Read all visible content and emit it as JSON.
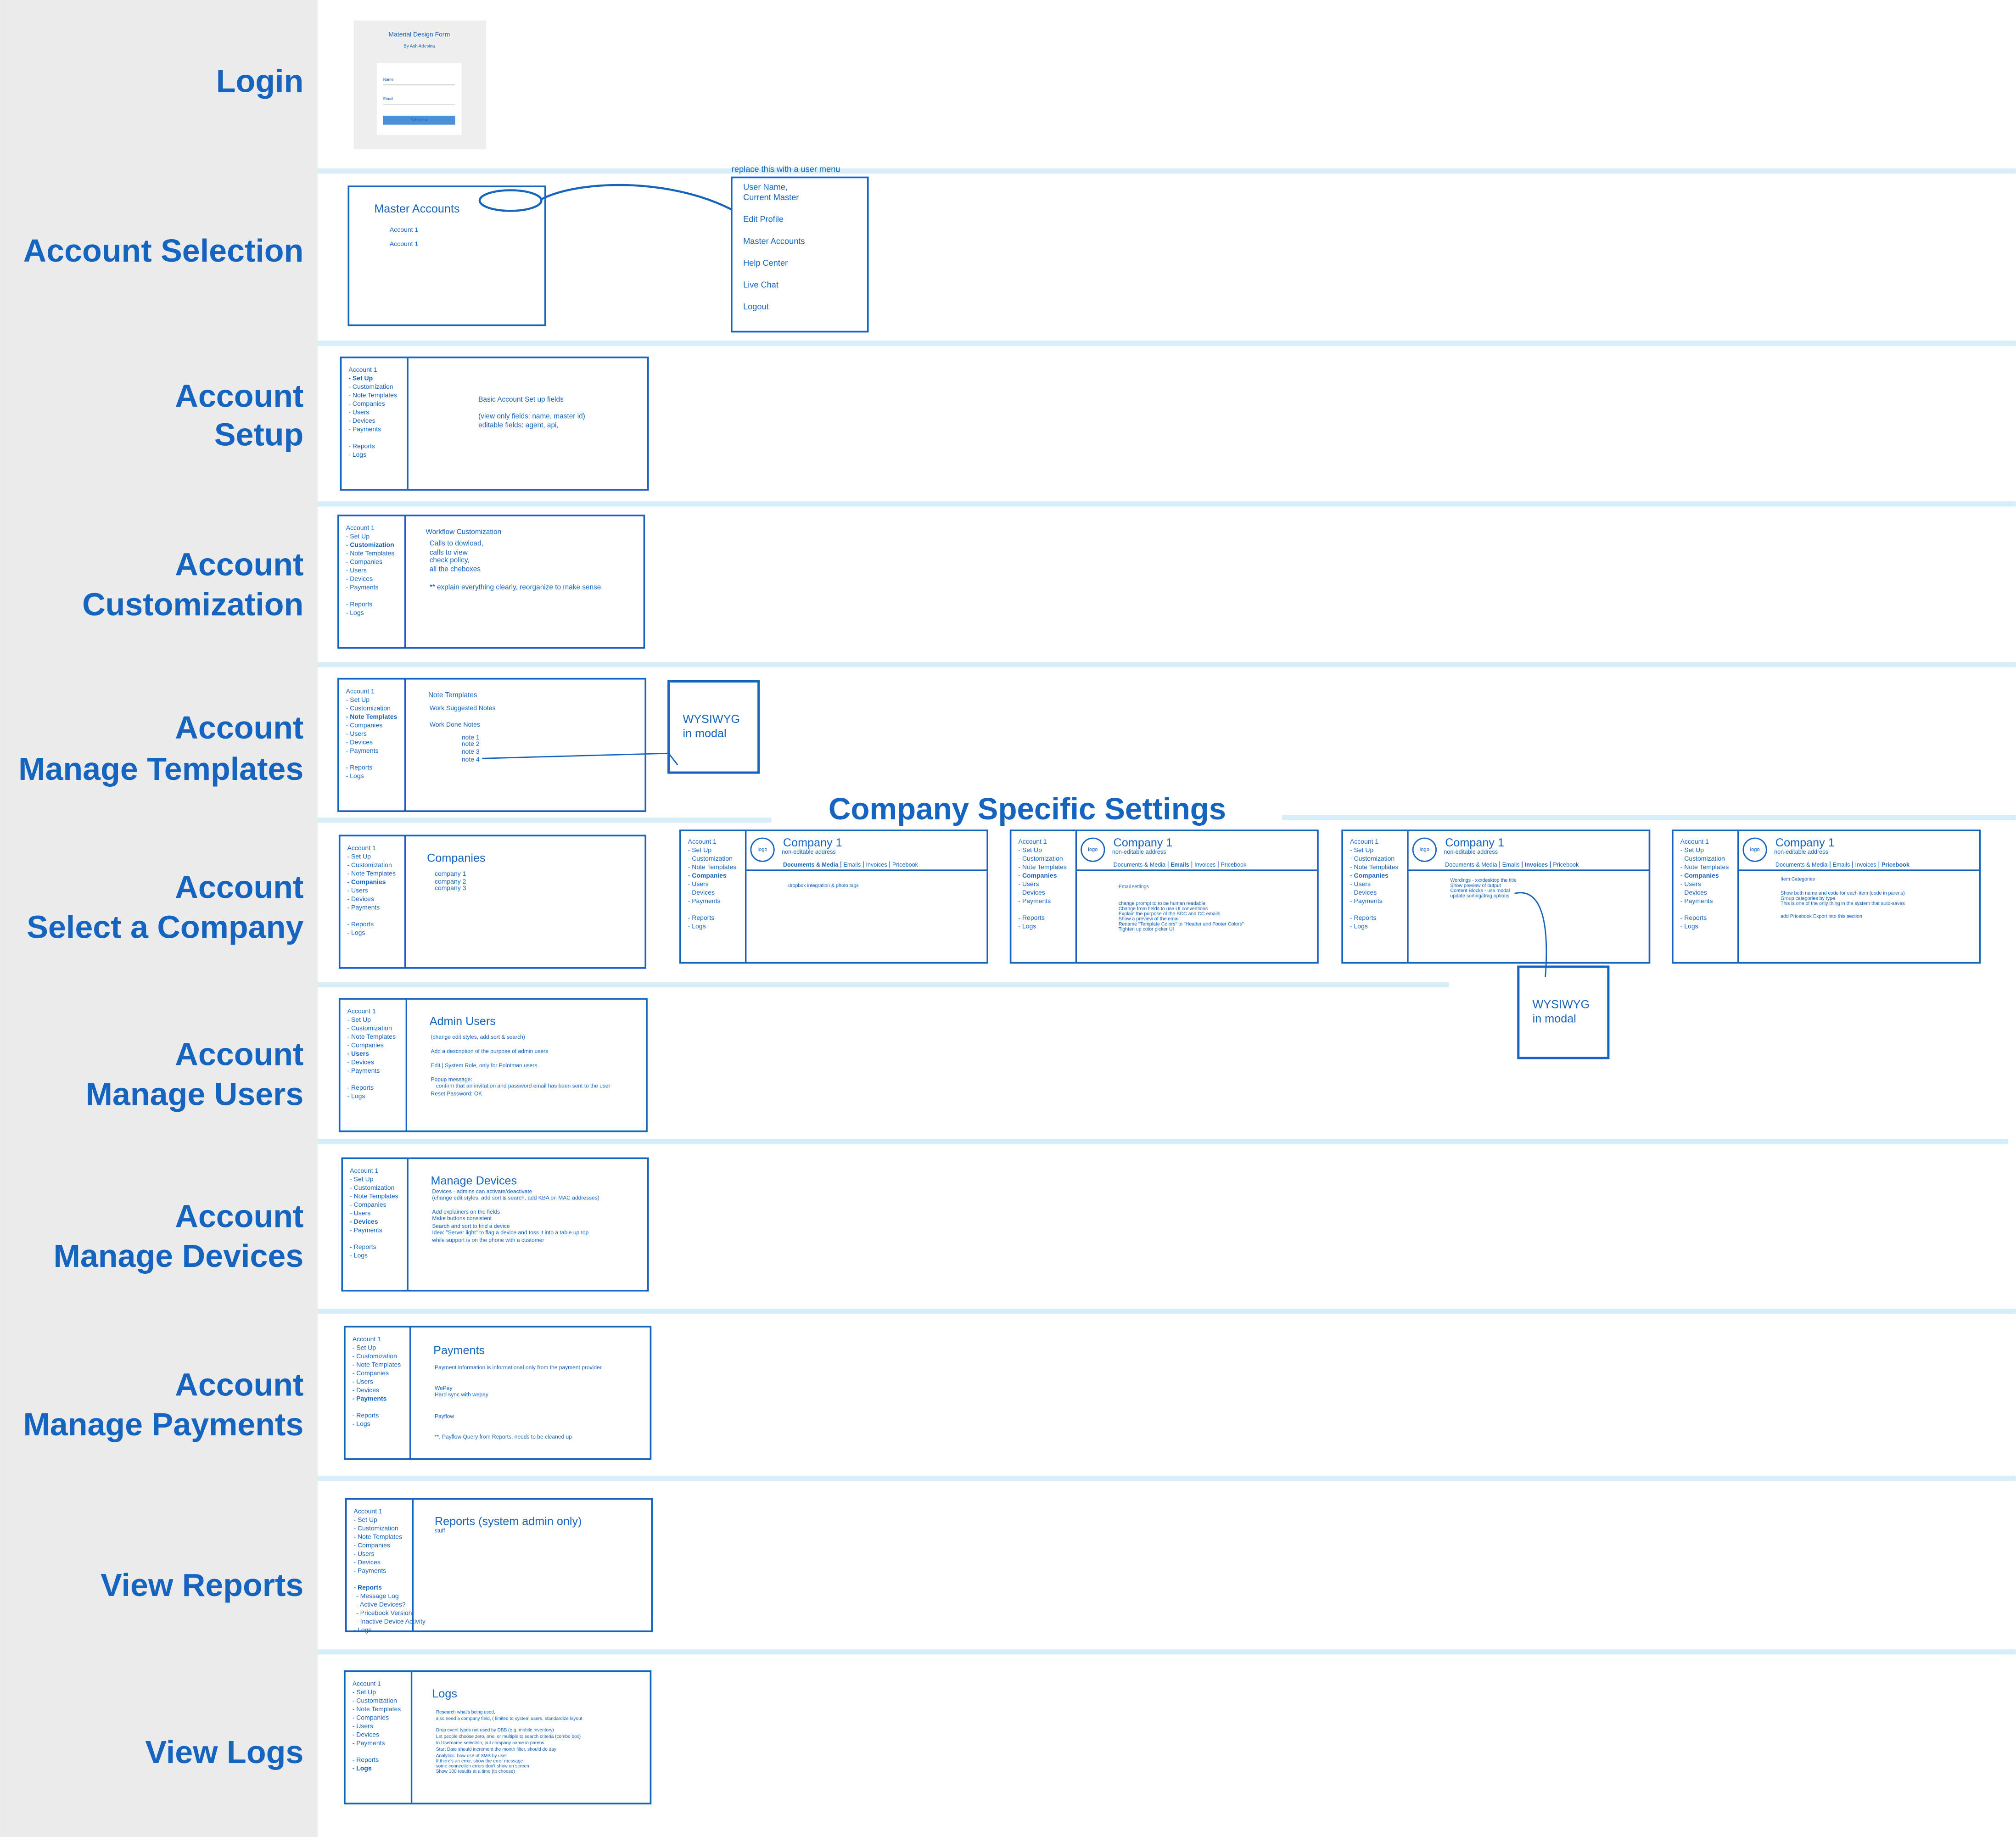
{
  "login": {
    "title": "Material Design Form",
    "subtitle": "By Ash Adesina",
    "fields": [
      "Name",
      "Email"
    ],
    "button": "Subscribe"
  },
  "sections": [
    {
      "label": [
        "Login"
      ]
    },
    {
      "label": [
        "Account Selection"
      ]
    },
    {
      "label": [
        "Account",
        "Setup"
      ]
    },
    {
      "label": [
        "Account",
        "Customization"
      ]
    },
    {
      "label": [
        "Account",
        "Manage Templates"
      ]
    },
    {
      "label": [
        "Account",
        "Select a Company"
      ]
    },
    {
      "label": [
        "Account",
        "Manage Users"
      ]
    },
    {
      "label": [
        "Account",
        "Manage Devices"
      ]
    },
    {
      "label": [
        "Account",
        "Manage Payments"
      ]
    },
    {
      "label": [
        "View Reports"
      ]
    },
    {
      "label": [
        "View Logs"
      ]
    }
  ],
  "account_selection": {
    "title": "Master Accounts",
    "accounts": [
      "Account 1",
      "Account 1"
    ],
    "menu_note": "replace this with a user menu",
    "menu": [
      "User Name,",
      "Current Master",
      "Edit Profile",
      "Master Accounts",
      "Help Center",
      "Live Chat",
      "Logout"
    ]
  },
  "nav": [
    "Account 1",
    "- Set Up",
    "- Customization",
    "- Note Templates",
    "- Companies",
    "- Users",
    "- Devices",
    "- Payments",
    "- Reports",
    "- Logs"
  ],
  "report_links": [
    "- Message Log",
    "- Active Devices?",
    "- Pricebook Version",
    "- Inactive Device Activity"
  ],
  "panels": [
    {
      "active": 1,
      "content": [
        "Basic Account Set up fields",
        "(view only fields: name, master id)",
        "editable fields: agent, api,"
      ]
    },
    {
      "active": 2,
      "heading": "Workflow Customization",
      "content": [
        "Calls to dowload,",
        "calls to view",
        "check policy,",
        "all the cheboxes",
        "** explain everything clearly, reorganize to make sense."
      ]
    },
    {
      "active": 3,
      "heading": "Note Templates",
      "content": [
        "Work Suggested Notes",
        "Work Done Notes",
        "note 1",
        "note 2",
        "note 3",
        "note 4"
      ]
    },
    {
      "active": 4,
      "heading": "Companies",
      "content": [
        "company 1",
        "company 2",
        "company 3"
      ]
    },
    {
      "active": 5,
      "heading": "Admin Users",
      "content": [
        "(change edit styles, add sort & search)",
        "Add a description of the purpose of admin users",
        "Edit | System Role, only for Pointman users",
        "Popup message:",
        "confirm that an invitation and password email has been sent to the user",
        "Reset Password: OK"
      ]
    },
    {
      "active": 6,
      "heading": "Manage Devices",
      "content": [
        "Devices - admins can activate/deactivate",
        "(change edit styles, add sort & search, add KBA on MAC addresses)",
        "Add explainers on the fields",
        "Make buttons consistent",
        "Search and sort to find a device",
        "Idea: \"Server light\" to flag a device and toss it into a table up top",
        "while support is on the phone with a customer"
      ]
    },
    {
      "active": 7,
      "heading": "Payments",
      "content": [
        "Payment information is informational only from the payment provider",
        "WePay",
        "Hard sync with wepay",
        "Payflow",
        "**, Payflow Query from Reports, needs to be cleaned up"
      ]
    },
    {
      "active": 8,
      "heading": "Reports (system admin only)",
      "content": [
        "stuff"
      ]
    },
    {
      "active": 9,
      "heading": "Logs",
      "content": [
        "Research what's being used,",
        "also need a company field, ( limited to system users, standardize layout",
        "Drop event types not used by DBB (e.g. mobile inventory)",
        "Let people choose zero, one, or multiple to search criteria (combo box)",
        "In Username selection, put company name in parens",
        "Start Date should increment the month filter, should do day",
        "Analytics: how use of SMS by user",
        "If there's an error, show the error message",
        "some connection errors don't show on screen",
        "Show 100 results at a time (to choose)"
      ]
    }
  ],
  "modal": [
    "WYSIWYG",
    "in modal"
  ],
  "company_settings": {
    "title": "Company Specific Settings",
    "company": "Company 1",
    "address": "non-editable address",
    "logo": "logo",
    "tabs": [
      "Documents & Media",
      "Emails",
      "Invoices",
      "Pricebook"
    ],
    "panels": [
      {
        "active_tab": 0,
        "content": [
          "dropbox integration & photo tags"
        ]
      },
      {
        "active_tab": 1,
        "content": [
          "Email settings",
          "change prompt to to be human readable",
          "Change from fields to use UI conventions",
          "Explain the purpose of the BCC and CC emails",
          "Show a preview of the email",
          "Rename \"Template Colors\" to \"Header and Footer Colors\"",
          "Tighten up color picker UI"
        ]
      },
      {
        "active_tab": 2,
        "content": [
          "Wordings - xxxdesktop the title",
          "Show preview of output",
          "Content Blocks - use modal",
          "update sorting/drag options"
        ]
      },
      {
        "active_tab": 3,
        "content": [
          "Item Categories",
          "Show both name and code for each item (code in parens)",
          "Group categories by type",
          "This is one of the only thing in the system that auto-saves",
          "add Pricebook Export into this section"
        ]
      }
    ]
  }
}
